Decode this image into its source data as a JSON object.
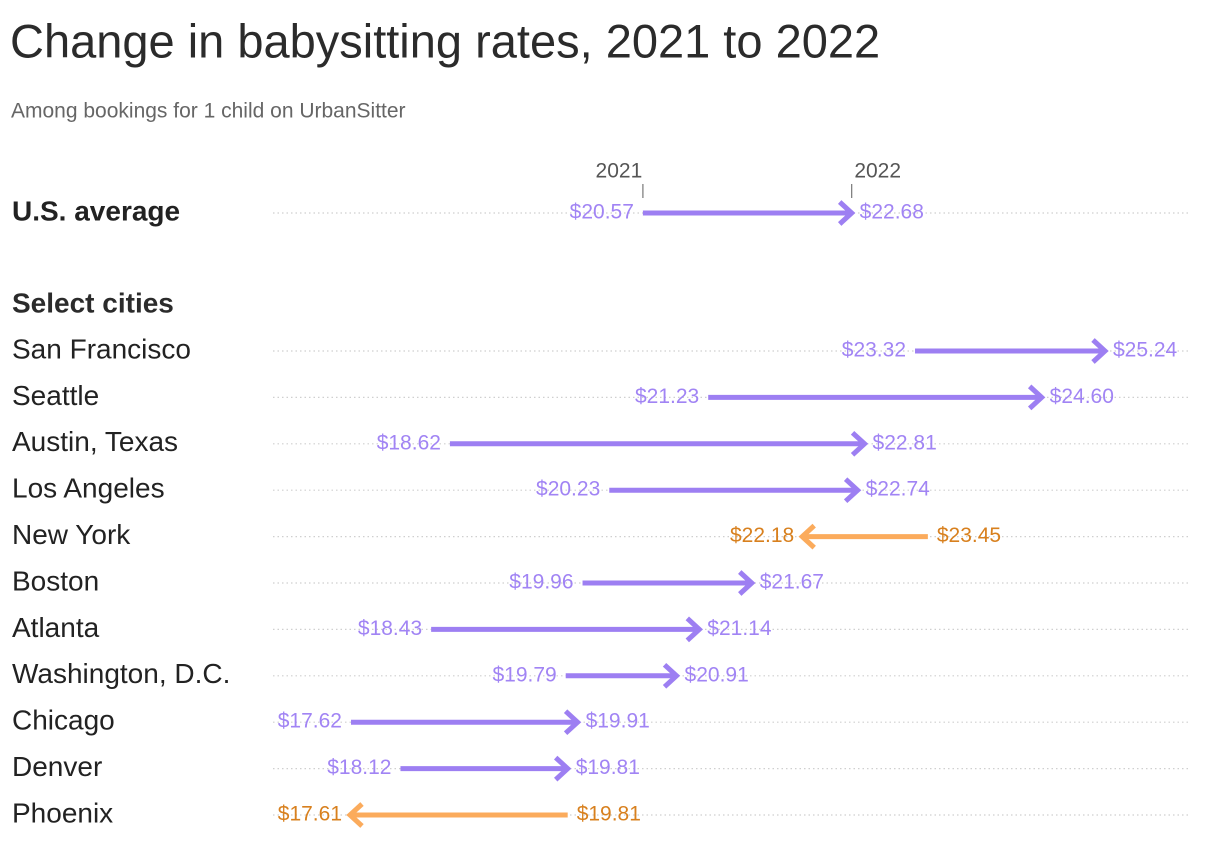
{
  "chart_data": {
    "type": "arrow",
    "title": "Change in babysitting rates, 2021 to 2022",
    "subtitle": "Among bookings for 1 child on UrbanSitter",
    "section_label": "Select cities",
    "categories": [
      "U.S. average",
      "San Francisco",
      "Seattle",
      "Austin, Texas",
      "Los Angeles",
      "New York",
      "Boston",
      "Atlanta",
      "Washington, D.C.",
      "Chicago",
      "Denver",
      "Phoenix"
    ],
    "series": [
      {
        "name": "2021",
        "values": [
          20.57,
          23.32,
          21.23,
          18.62,
          20.23,
          23.45,
          19.96,
          18.43,
          19.79,
          17.62,
          18.12,
          19.81
        ],
        "value_labels": [
          "$20.57",
          "$23.32",
          "$21.23",
          "$18.62",
          "$20.23",
          "$23.45",
          "$19.96",
          "$18.43",
          "$19.79",
          "$17.62",
          "$18.12",
          "$19.81"
        ]
      },
      {
        "name": "2022",
        "values": [
          22.68,
          25.24,
          24.6,
          22.81,
          22.74,
          22.18,
          21.67,
          21.14,
          20.91,
          19.91,
          19.81,
          17.61
        ],
        "value_labels": [
          "$22.68",
          "$25.24",
          "$24.60",
          "$22.81",
          "$22.74",
          "$22.18",
          "$21.67",
          "$21.14",
          "$20.91",
          "$19.91",
          "$19.81",
          "$17.61"
        ]
      }
    ],
    "colors": {
      "increase": "#9d7ff2",
      "decrease": "#fbab5c",
      "increase_label": "#a184f4",
      "decrease_label": "#d8801e"
    }
  }
}
